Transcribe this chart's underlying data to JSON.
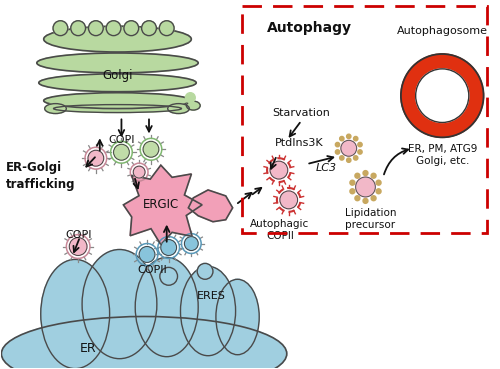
{
  "golgi_color": "#b8d9a0",
  "golgi_outline": "#4a4a4a",
  "er_color": "#a0cfe0",
  "er_outline": "#4a4a4a",
  "ergic_color": "#f2a0b8",
  "ergic_outline": "#4a4a4a",
  "vesicle_pink_fill": "#f2b8c8",
  "vesicle_pink_outer": "#c88898",
  "vesicle_green_fill": "#c0dca8",
  "vesicle_green_outer": "#80b870",
  "vesicle_blue_fill": "#88c4dc",
  "vesicle_blue_outer": "#5898b8",
  "vesicle_spike_color": "#888888",
  "autophagic_fill": "#f2b8c8",
  "autophagic_spike": "#cc3333",
  "autophagosome_red": "#e03010",
  "autophagosome_dark": "#c02000",
  "lipidation_spike": "#c8a860",
  "lipidation_fill": "#f2b8c8",
  "dashed_box_color": "#cc0000",
  "arrow_color": "#111111",
  "text_color": "#111111",
  "white": "#ffffff",
  "label_ergolgi": "ER-Golgi\ntrafficking",
  "label_autophagy": "Autophagy",
  "label_autophagosome": "Autophagosome",
  "label_golgi": "Golgi",
  "label_er": "ER",
  "label_eres": "ERES",
  "label_ergic": "ERGIC",
  "label_copi_top": "COPI",
  "label_copi_bottom": "COPI",
  "label_copii": "COPII",
  "label_autophagic_copii": "Autophagic\nCOPII",
  "label_lipidation": "Lipidation\nprecursor",
  "label_lc3": "LC3",
  "label_starvation": "Starvation",
  "label_ptdins3k": "PtdIns3K",
  "label_er_pm": "ER, PM, ATG9\nGolgi, etc."
}
